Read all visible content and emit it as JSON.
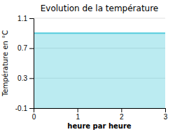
{
  "chart_data": {
    "type": "area",
    "title": "Evolution de la température",
    "xlabel": "heure par heure",
    "ylabel": "Température en °C",
    "x": [
      0,
      3
    ],
    "values": [
      0.9,
      0.9
    ],
    "color": "#55ccdd",
    "xlim": [
      0,
      3
    ],
    "ylim": [
      -0.1,
      1.1
    ],
    "xticks": [
      0,
      1,
      2,
      3
    ],
    "yticks": [
      -0.1,
      0.3,
      0.7,
      1.1
    ],
    "grid": true
  }
}
